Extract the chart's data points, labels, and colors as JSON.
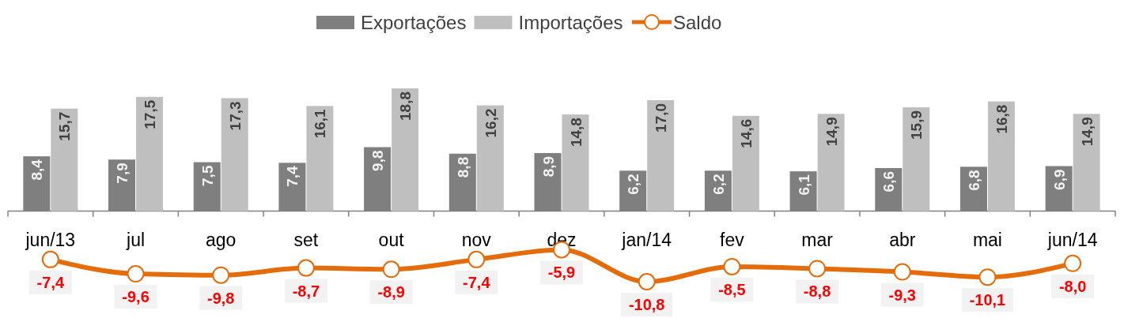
{
  "chart_data": {
    "type": "bar",
    "categories": [
      "jun/13",
      "jul",
      "ago",
      "set",
      "out",
      "nov",
      "dez",
      "jan/14",
      "fev",
      "mar",
      "abr",
      "mai",
      "jun/14"
    ],
    "series": [
      {
        "name": "Exportações",
        "color": "#7f7f7f",
        "values": [
          8.4,
          7.9,
          7.5,
          7.4,
          9.8,
          8.8,
          8.9,
          6.2,
          6.2,
          6.1,
          6.6,
          6.8,
          6.9
        ],
        "value_labels": [
          "8,4",
          "7,9",
          "7,5",
          "7,4",
          "9,8",
          "8,8",
          "8,9",
          "6,2",
          "6,2",
          "6,1",
          "6,6",
          "6,8",
          "6,9"
        ]
      },
      {
        "name": "Importações",
        "color": "#bfbfbf",
        "values": [
          15.7,
          17.5,
          17.3,
          16.1,
          18.8,
          16.2,
          14.8,
          17.0,
          14.6,
          14.9,
          15.9,
          16.8,
          14.9
        ],
        "value_labels": [
          "15,7",
          "17,5",
          "17,3",
          "16,1",
          "18,8",
          "16,2",
          "14,8",
          "17,0",
          "14,6",
          "14,9",
          "15,9",
          "16,8",
          "14,9"
        ]
      },
      {
        "name": "Saldo",
        "type": "line",
        "color": "#e46c0a",
        "marker": "circle",
        "values": [
          -7.4,
          -9.6,
          -9.8,
          -8.7,
          -8.9,
          -7.4,
          -5.9,
          -10.8,
          -8.5,
          -8.8,
          -9.3,
          -10.1,
          -8.0
        ],
        "value_labels": [
          "-7,4",
          "-9,6",
          "-9,8",
          "-8,7",
          "-8,9",
          "-7,4",
          "-5,9",
          "-10,8",
          "-8,5",
          "-8,8",
          "-9,3",
          "-10,1",
          "-8,0"
        ]
      }
    ],
    "tick_labels": "x",
    "legend": "top"
  }
}
